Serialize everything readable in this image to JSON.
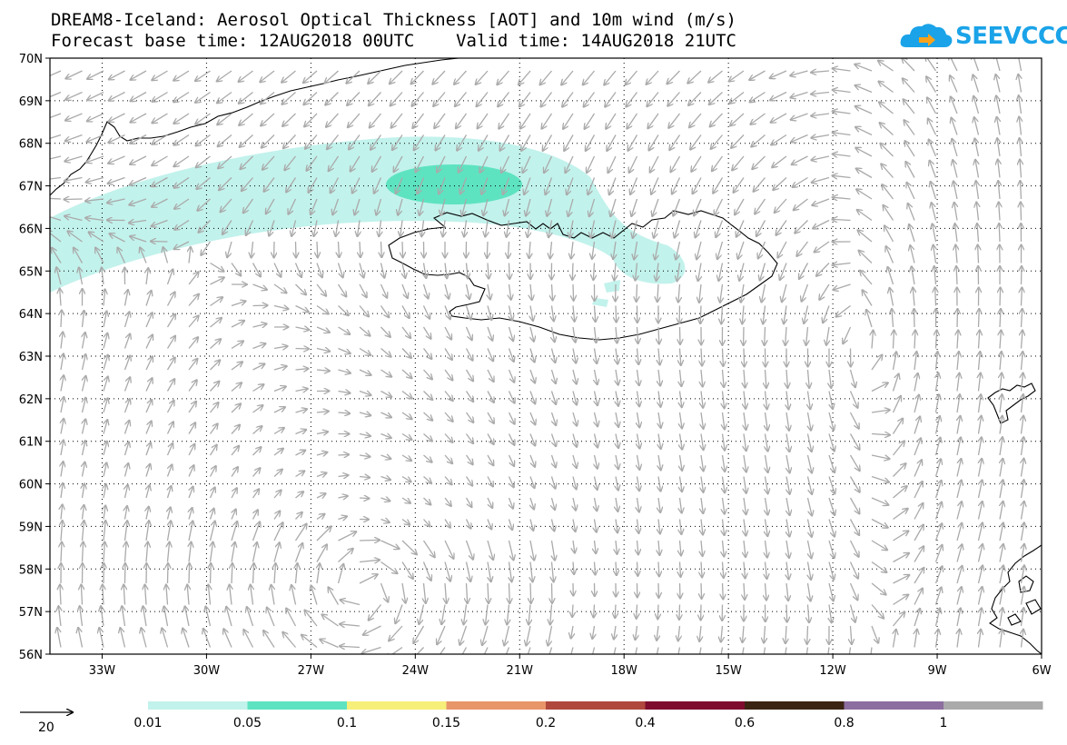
{
  "title": {
    "line1": "DREAM8-Iceland: Aerosol Optical Thickness [AOT] and 10m wind (m/s)",
    "line2": "Forecast base time: 12AUG2018 00UTC    Valid time: 14AUG2018 21UTC"
  },
  "logo": {
    "text": "SEEVCCC",
    "color": "#1aa3e8",
    "icon": "cloud-arrow-icon"
  },
  "map": {
    "lat_range": [
      56,
      70
    ],
    "lon_range": [
      -34.5,
      -6
    ],
    "lat_ticks": [
      "56N",
      "57N",
      "58N",
      "59N",
      "60N",
      "61N",
      "62N",
      "63N",
      "64N",
      "65N",
      "66N",
      "67N",
      "68N",
      "69N",
      "70N"
    ],
    "lon_ticks": [
      "33W",
      "30W",
      "27W",
      "24W",
      "21W",
      "18W",
      "15W",
      "12W",
      "9W",
      "6W"
    ],
    "grid_lines": "dotted",
    "coastline_color": "#000000",
    "wind_arrow_color": "#aaaaaa"
  },
  "wind_reference": {
    "label": "20",
    "speed": 20
  },
  "colorbar": {
    "labels": [
      "0.01",
      "0.05",
      "0.1",
      "0.15",
      "0.2",
      "0.4",
      "0.6",
      "0.8",
      "1"
    ],
    "colors": [
      "#c2f2ec",
      "#5ee3c1",
      "#f6ef7a",
      "#e8956a",
      "#b0483e",
      "#7e0c2e",
      "#3b2412",
      "#8d6ea0",
      "#aaaaaa"
    ]
  }
}
